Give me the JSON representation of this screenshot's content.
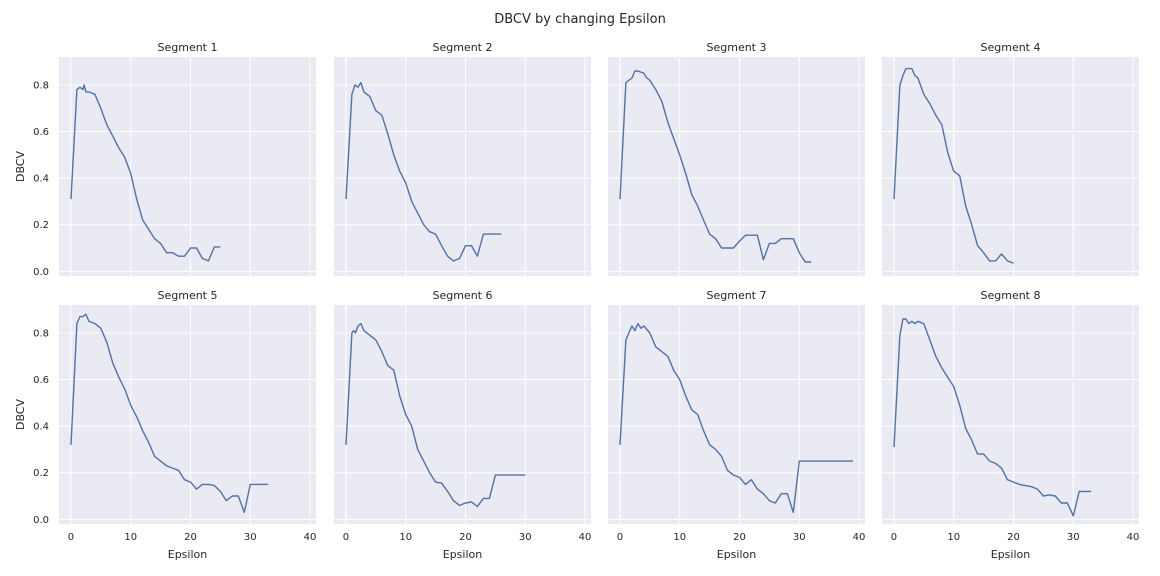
{
  "figure": {
    "title": "DBCV by changing Epsilon",
    "xlabel": "Epsilon",
    "ylabel": "DBCV",
    "line_color": "#4c72b0",
    "panel_bg": "#eaeaf2",
    "grid_color": "#ffffff"
  },
  "chart_data": [
    {
      "type": "line",
      "title": "Segment 1",
      "xlim": [
        -2,
        41
      ],
      "ylim": [
        -0.02,
        0.92
      ],
      "xticks": [
        0,
        10,
        20,
        30,
        40
      ],
      "yticks": [
        0.0,
        0.2,
        0.4,
        0.6,
        0.8
      ],
      "grid": true,
      "x": [
        0,
        1,
        1.5,
        2,
        2.2,
        2.5,
        3,
        4,
        5,
        6,
        7,
        8,
        9,
        10,
        11,
        12,
        13,
        14,
        15,
        16,
        17,
        18,
        19,
        20,
        21,
        22,
        23,
        24,
        25
      ],
      "y": [
        0.31,
        0.78,
        0.79,
        0.78,
        0.8,
        0.77,
        0.77,
        0.76,
        0.7,
        0.63,
        0.58,
        0.53,
        0.49,
        0.42,
        0.31,
        0.22,
        0.18,
        0.14,
        0.12,
        0.08,
        0.08,
        0.065,
        0.065,
        0.1,
        0.1,
        0.055,
        0.045,
        0.105,
        0.105
      ]
    },
    {
      "type": "line",
      "title": "Segment 2",
      "xlim": [
        -2,
        41
      ],
      "ylim": [
        -0.02,
        0.92
      ],
      "xticks": [
        0,
        10,
        20,
        30,
        40
      ],
      "yticks": [
        0.0,
        0.2,
        0.4,
        0.6,
        0.8
      ],
      "grid": true,
      "x": [
        0,
        1,
        1.5,
        2,
        2.5,
        3,
        4,
        5,
        6,
        7,
        8,
        9,
        10,
        11,
        12,
        13,
        14,
        15,
        16,
        17,
        18,
        19,
        20,
        21,
        22,
        23,
        24,
        25,
        26
      ],
      "y": [
        0.31,
        0.76,
        0.8,
        0.79,
        0.81,
        0.77,
        0.75,
        0.69,
        0.67,
        0.59,
        0.5,
        0.43,
        0.38,
        0.3,
        0.25,
        0.2,
        0.17,
        0.16,
        0.11,
        0.065,
        0.045,
        0.055,
        0.11,
        0.11,
        0.065,
        0.16,
        0.16,
        0.16,
        0.16
      ]
    },
    {
      "type": "line",
      "title": "Segment 3",
      "xlim": [
        -2,
        41
      ],
      "ylim": [
        -0.02,
        0.92
      ],
      "xticks": [
        0,
        10,
        20,
        30,
        40
      ],
      "yticks": [
        0.0,
        0.2,
        0.4,
        0.6,
        0.8
      ],
      "grid": true,
      "x": [
        0,
        1,
        2,
        2.5,
        3,
        4,
        4.5,
        5,
        6,
        7,
        8,
        9,
        10,
        11,
        12,
        13,
        14,
        15,
        16,
        17,
        18,
        19,
        20,
        21,
        22,
        23,
        24,
        25,
        26,
        27,
        28,
        29,
        30,
        31,
        32
      ],
      "y": [
        0.31,
        0.81,
        0.83,
        0.86,
        0.86,
        0.85,
        0.83,
        0.82,
        0.78,
        0.73,
        0.64,
        0.57,
        0.5,
        0.42,
        0.33,
        0.28,
        0.22,
        0.16,
        0.14,
        0.1,
        0.1,
        0.1,
        0.13,
        0.155,
        0.155,
        0.155,
        0.05,
        0.12,
        0.12,
        0.14,
        0.14,
        0.14,
        0.08,
        0.04,
        0.04
      ]
    },
    {
      "type": "line",
      "title": "Segment 4",
      "xlim": [
        -2,
        41
      ],
      "ylim": [
        -0.02,
        0.92
      ],
      "xticks": [
        0,
        10,
        20,
        30,
        40
      ],
      "yticks": [
        0.0,
        0.2,
        0.4,
        0.6,
        0.8
      ],
      "grid": true,
      "x": [
        0,
        1,
        1.5,
        2,
        2.5,
        3,
        3.5,
        4,
        5,
        6,
        7,
        8,
        9,
        10,
        11,
        12,
        13,
        14,
        15,
        16,
        17,
        18,
        19,
        20
      ],
      "y": [
        0.31,
        0.8,
        0.84,
        0.87,
        0.87,
        0.87,
        0.84,
        0.83,
        0.76,
        0.72,
        0.67,
        0.63,
        0.51,
        0.43,
        0.41,
        0.28,
        0.2,
        0.11,
        0.08,
        0.045,
        0.045,
        0.075,
        0.045,
        0.035
      ]
    },
    {
      "type": "line",
      "title": "Segment 5",
      "xlim": [
        -2,
        41
      ],
      "ylim": [
        -0.02,
        0.92
      ],
      "xticks": [
        0,
        10,
        20,
        30,
        40
      ],
      "yticks": [
        0.0,
        0.2,
        0.4,
        0.6,
        0.8
      ],
      "grid": true,
      "x": [
        0,
        1,
        1.5,
        2,
        2.5,
        3,
        4,
        5,
        6,
        7,
        8,
        9,
        10,
        11,
        12,
        13,
        14,
        15,
        16,
        17,
        18,
        19,
        20,
        21,
        22,
        23,
        24,
        25,
        26,
        27,
        28,
        29,
        30,
        31,
        32,
        33
      ],
      "y": [
        0.32,
        0.84,
        0.87,
        0.87,
        0.88,
        0.85,
        0.84,
        0.82,
        0.76,
        0.67,
        0.61,
        0.56,
        0.49,
        0.44,
        0.38,
        0.33,
        0.27,
        0.25,
        0.23,
        0.22,
        0.21,
        0.17,
        0.16,
        0.13,
        0.15,
        0.15,
        0.145,
        0.12,
        0.08,
        0.1,
        0.1,
        0.03,
        0.15,
        0.15,
        0.15,
        0.15
      ]
    },
    {
      "type": "line",
      "title": "Segment 6",
      "xlim": [
        -2,
        41
      ],
      "ylim": [
        -0.02,
        0.92
      ],
      "xticks": [
        0,
        10,
        20,
        30,
        40
      ],
      "yticks": [
        0.0,
        0.2,
        0.4,
        0.6,
        0.8
      ],
      "grid": true,
      "x": [
        0,
        1,
        1.3,
        1.6,
        2,
        2.5,
        3,
        4,
        5,
        6,
        7,
        8,
        9,
        10,
        11,
        12,
        13,
        14,
        15,
        16,
        17,
        18,
        19,
        20,
        21,
        22,
        23,
        24,
        25,
        26,
        27,
        28,
        29,
        30
      ],
      "y": [
        0.32,
        0.8,
        0.81,
        0.8,
        0.83,
        0.84,
        0.81,
        0.79,
        0.77,
        0.72,
        0.66,
        0.64,
        0.53,
        0.45,
        0.4,
        0.3,
        0.25,
        0.2,
        0.16,
        0.155,
        0.12,
        0.08,
        0.06,
        0.07,
        0.075,
        0.055,
        0.09,
        0.09,
        0.19,
        0.19,
        0.19,
        0.19,
        0.19,
        0.19
      ]
    },
    {
      "type": "line",
      "title": "Segment 7",
      "xlim": [
        -2,
        41
      ],
      "ylim": [
        -0.02,
        0.92
      ],
      "xticks": [
        0,
        10,
        20,
        30,
        40
      ],
      "yticks": [
        0.0,
        0.2,
        0.4,
        0.6,
        0.8
      ],
      "grid": true,
      "x": [
        0,
        1,
        2,
        2.5,
        3,
        3.5,
        4,
        5,
        6,
        7,
        8,
        9,
        10,
        11,
        12,
        13,
        14,
        15,
        16,
        17,
        18,
        19,
        20,
        21,
        22,
        23,
        24,
        25,
        26,
        27,
        28,
        29,
        30,
        31,
        32,
        33,
        34,
        35,
        36,
        37,
        38,
        39
      ],
      "y": [
        0.32,
        0.77,
        0.83,
        0.81,
        0.84,
        0.82,
        0.83,
        0.8,
        0.74,
        0.72,
        0.7,
        0.64,
        0.6,
        0.53,
        0.47,
        0.45,
        0.38,
        0.32,
        0.3,
        0.27,
        0.21,
        0.19,
        0.18,
        0.15,
        0.17,
        0.13,
        0.11,
        0.08,
        0.07,
        0.11,
        0.11,
        0.03,
        0.25,
        0.25,
        0.25,
        0.25,
        0.25,
        0.25,
        0.25,
        0.25,
        0.25,
        0.25
      ]
    },
    {
      "type": "line",
      "title": "Segment 8",
      "xlim": [
        -2,
        41
      ],
      "ylim": [
        -0.02,
        0.92
      ],
      "xticks": [
        0,
        10,
        20,
        30,
        40
      ],
      "yticks": [
        0.0,
        0.2,
        0.4,
        0.6,
        0.8
      ],
      "grid": true,
      "x": [
        0,
        1,
        1.5,
        2,
        2.5,
        3,
        3.5,
        4,
        5,
        6,
        7,
        8,
        9,
        10,
        11,
        12,
        13,
        14,
        15,
        16,
        17,
        18,
        19,
        20,
        21,
        22,
        23,
        24,
        25,
        26,
        27,
        28,
        29,
        30,
        31,
        32,
        33
      ],
      "y": [
        0.31,
        0.79,
        0.86,
        0.86,
        0.84,
        0.85,
        0.84,
        0.85,
        0.84,
        0.77,
        0.7,
        0.65,
        0.61,
        0.57,
        0.49,
        0.39,
        0.34,
        0.28,
        0.28,
        0.25,
        0.24,
        0.22,
        0.17,
        0.16,
        0.15,
        0.145,
        0.14,
        0.13,
        0.1,
        0.105,
        0.1,
        0.07,
        0.07,
        0.015,
        0.12,
        0.12,
        0.12
      ]
    }
  ]
}
